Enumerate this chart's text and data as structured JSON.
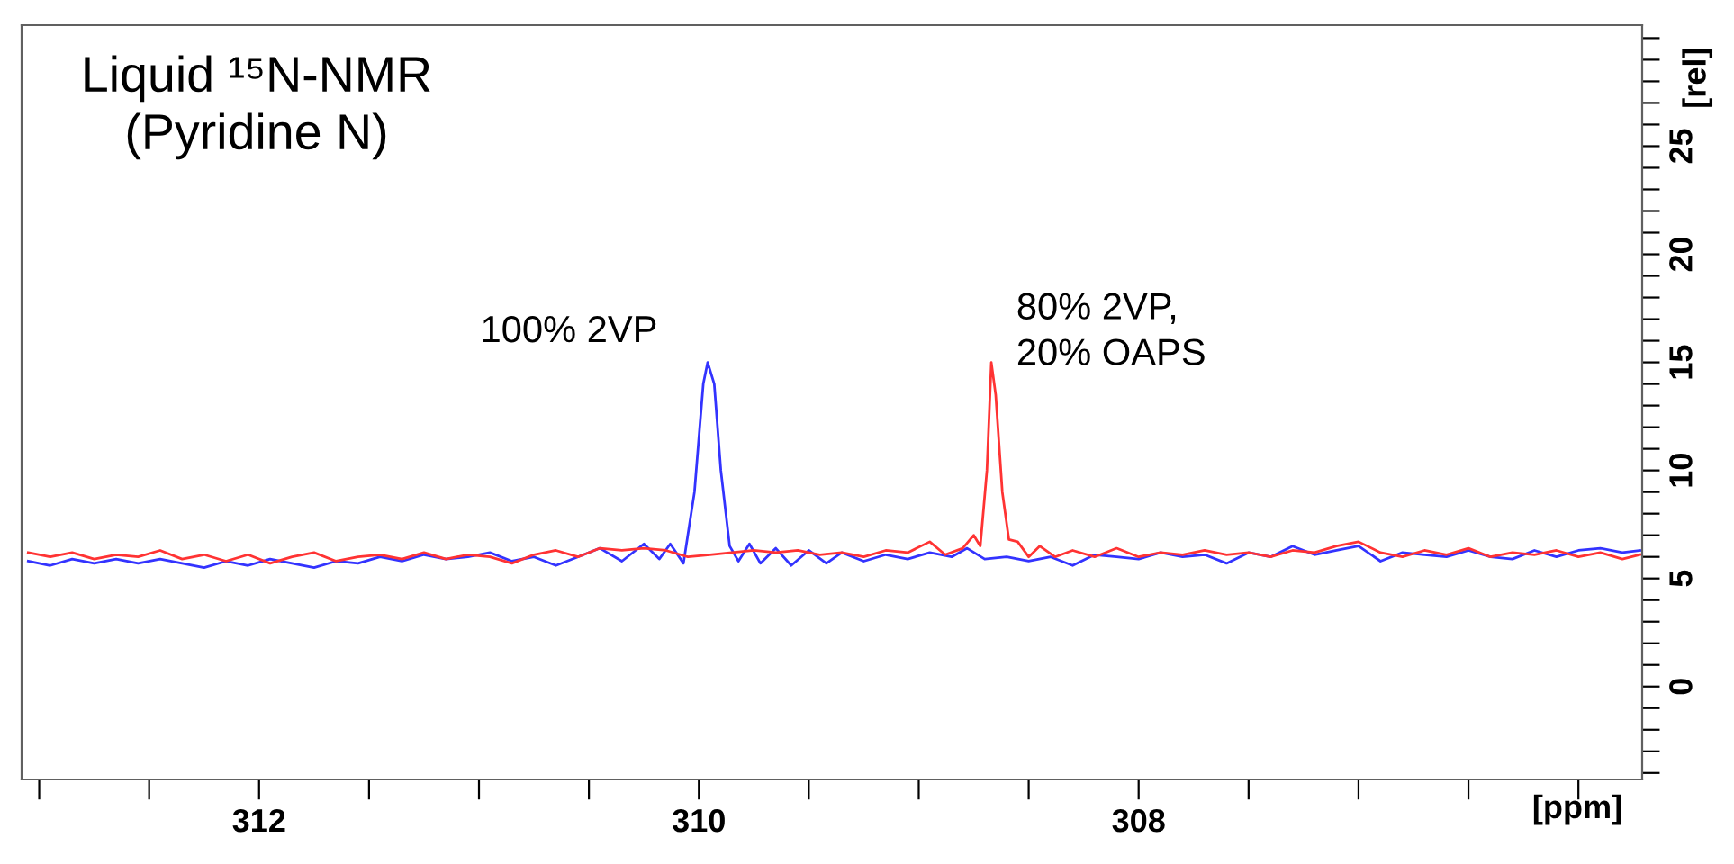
{
  "chart_data": {
    "type": "line",
    "title": "Liquid ¹⁵N-NMR\n(Pyridine N)",
    "xlabel": "[ppm]",
    "ylabel": "[rel]",
    "xlim": [
      313.08,
      305.71
    ],
    "ylim": [
      -4.3,
      30.6
    ],
    "xticks": [
      {
        "value": 313.0,
        "label": null
      },
      {
        "value": 312.5,
        "label": null
      },
      312,
      {
        "value": 311.5,
        "label": null
      },
      {
        "value": 311.0,
        "label": null
      },
      {
        "value": 310.5,
        "label": null
      },
      310,
      {
        "value": 309.5,
        "label": null
      },
      {
        "value": 309.0,
        "label": null
      },
      {
        "value": 308.5,
        "label": null
      },
      308,
      {
        "value": 307.5,
        "label": null
      },
      {
        "value": 307.0,
        "label": null
      },
      {
        "value": 306.5,
        "label": null
      },
      {
        "value": 306.0,
        "label": null
      }
    ],
    "yticks": [
      {
        "value": -4,
        "label": null
      },
      {
        "value": -3,
        "label": null
      },
      {
        "value": -2,
        "label": null
      },
      {
        "value": -1,
        "label": null
      },
      0,
      {
        "value": 1,
        "label": null
      },
      {
        "value": 2,
        "label": null
      },
      {
        "value": 3,
        "label": null
      },
      {
        "value": 4,
        "label": null
      },
      5,
      {
        "value": 6,
        "label": null
      },
      {
        "value": 7,
        "label": null
      },
      {
        "value": 8,
        "label": null
      },
      {
        "value": 9,
        "label": null
      },
      10,
      {
        "value": 11,
        "label": null
      },
      {
        "value": 12,
        "label": null
      },
      {
        "value": 13,
        "label": null
      },
      {
        "value": 14,
        "label": null
      },
      15,
      {
        "value": 16,
        "label": null
      },
      {
        "value": 17,
        "label": null
      },
      {
        "value": 18,
        "label": null
      },
      {
        "value": 19,
        "label": null
      },
      20,
      {
        "value": 21,
        "label": null
      },
      {
        "value": 22,
        "label": null
      },
      {
        "value": 23,
        "label": null
      },
      {
        "value": 24,
        "label": null
      },
      25,
      {
        "value": 26,
        "label": null
      },
      {
        "value": 27,
        "label": null
      },
      {
        "value": 28,
        "label": null
      },
      {
        "value": 29,
        "label": null
      },
      {
        "value": 30,
        "label": null
      }
    ],
    "grid": false,
    "legend": false,
    "marker": "none",
    "line_style": "solid",
    "series": [
      {
        "name": "100% 2VP",
        "color": "#3333ff",
        "x": [
          313.05,
          312.95,
          312.85,
          312.75,
          312.65,
          312.55,
          312.45,
          312.35,
          312.25,
          312.15,
          312.05,
          311.95,
          311.85,
          311.75,
          311.65,
          311.55,
          311.45,
          311.35,
          311.25,
          311.15,
          311.05,
          310.95,
          310.85,
          310.75,
          310.65,
          310.55,
          310.45,
          310.35,
          310.25,
          310.18,
          310.13,
          310.07,
          310.02,
          309.98,
          309.96,
          309.93,
          309.9,
          309.86,
          309.82,
          309.77,
          309.72,
          309.65,
          309.58,
          309.5,
          309.42,
          309.35,
          309.25,
          309.15,
          309.05,
          308.95,
          308.85,
          308.78,
          308.7,
          308.6,
          308.5,
          308.4,
          308.3,
          308.2,
          308.1,
          308.0,
          307.9,
          307.8,
          307.7,
          307.6,
          307.5,
          307.4,
          307.3,
          307.2,
          307.1,
          307.0,
          306.9,
          306.8,
          306.7,
          306.6,
          306.5,
          306.4,
          306.3,
          306.2,
          306.1,
          306.0,
          305.9,
          305.8,
          305.72
        ],
        "values": [
          5.8,
          5.6,
          5.9,
          5.7,
          5.9,
          5.7,
          5.9,
          5.7,
          5.5,
          5.8,
          5.6,
          5.9,
          5.7,
          5.5,
          5.8,
          5.7,
          6.0,
          5.8,
          6.1,
          5.9,
          6.0,
          6.2,
          5.8,
          6.0,
          5.6,
          6.0,
          6.4,
          5.8,
          6.6,
          5.9,
          6.6,
          5.7,
          9.0,
          14.0,
          15.0,
          14.0,
          10.0,
          6.5,
          5.8,
          6.6,
          5.7,
          6.4,
          5.6,
          6.3,
          5.7,
          6.2,
          5.8,
          6.1,
          5.9,
          6.2,
          6.0,
          6.4,
          5.9,
          6.0,
          5.8,
          6.0,
          5.6,
          6.1,
          6.0,
          5.9,
          6.2,
          6.0,
          6.1,
          5.7,
          6.2,
          6.0,
          6.5,
          6.1,
          6.3,
          6.5,
          5.8,
          6.2,
          6.1,
          6.0,
          6.3,
          6.0,
          5.9,
          6.3,
          6.0,
          6.3,
          6.4,
          6.2,
          6.3
        ]
      },
      {
        "name": "80% 2VP,\n20% OAPS",
        "color": "#ff3333",
        "x": [
          313.05,
          312.95,
          312.85,
          312.75,
          312.65,
          312.55,
          312.45,
          312.35,
          312.25,
          312.15,
          312.05,
          311.95,
          311.85,
          311.75,
          311.65,
          311.55,
          311.45,
          311.35,
          311.25,
          311.15,
          311.05,
          310.95,
          310.85,
          310.75,
          310.65,
          310.55,
          310.45,
          310.35,
          310.25,
          310.15,
          310.05,
          309.95,
          309.85,
          309.75,
          309.65,
          309.55,
          309.45,
          309.35,
          309.25,
          309.15,
          309.05,
          308.95,
          308.88,
          308.8,
          308.75,
          308.72,
          308.69,
          308.67,
          308.65,
          308.62,
          308.59,
          308.55,
          308.5,
          308.45,
          308.38,
          308.3,
          308.2,
          308.1,
          308.0,
          307.9,
          307.8,
          307.7,
          307.6,
          307.5,
          307.4,
          307.3,
          307.2,
          307.1,
          307.0,
          306.9,
          306.8,
          306.7,
          306.6,
          306.5,
          306.4,
          306.3,
          306.2,
          306.1,
          306.0,
          305.9,
          305.8,
          305.72
        ],
        "values": [
          6.2,
          6.0,
          6.2,
          5.9,
          6.1,
          6.0,
          6.3,
          5.9,
          6.1,
          5.8,
          6.1,
          5.7,
          6.0,
          6.2,
          5.8,
          6.0,
          6.1,
          5.9,
          6.2,
          5.9,
          6.1,
          6.0,
          5.7,
          6.1,
          6.3,
          6.0,
          6.4,
          6.3,
          6.4,
          6.3,
          6.0,
          6.1,
          6.2,
          6.3,
          6.2,
          6.3,
          6.1,
          6.2,
          6.0,
          6.3,
          6.2,
          6.7,
          6.1,
          6.4,
          7.0,
          6.5,
          10.0,
          15.0,
          13.5,
          9.0,
          6.8,
          6.7,
          6.0,
          6.5,
          6.0,
          6.3,
          6.0,
          6.4,
          6.0,
          6.2,
          6.1,
          6.3,
          6.1,
          6.2,
          6.0,
          6.3,
          6.2,
          6.5,
          6.7,
          6.2,
          6.0,
          6.3,
          6.1,
          6.4,
          6.0,
          6.2,
          6.1,
          6.3,
          6.0,
          6.2,
          5.9,
          6.1
        ]
      }
    ]
  }
}
